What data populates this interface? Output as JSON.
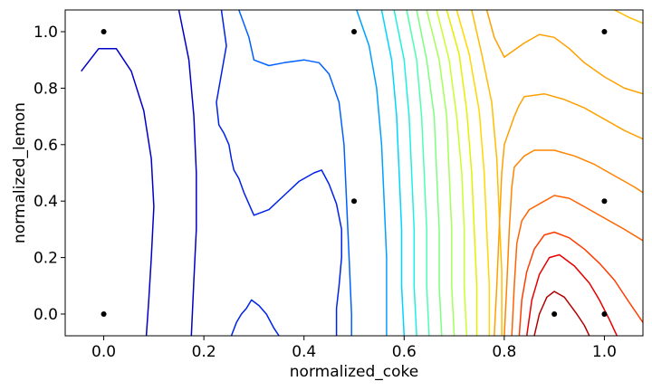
{
  "chart_data": {
    "type": "contour",
    "title": "",
    "xlabel": "normalized_coke",
    "ylabel": "normalized_lemon",
    "xlim": [
      -0.077,
      1.077
    ],
    "ylim": [
      -0.077,
      1.077
    ],
    "grid": false,
    "legend": "none",
    "x_ticks": [
      0.0,
      0.2,
      0.4,
      0.6,
      0.8,
      1.0
    ],
    "x_tick_labels": [
      "0.0",
      "0.2",
      "0.4",
      "0.6",
      "0.8",
      "1.0"
    ],
    "y_ticks": [
      0.0,
      0.2,
      0.4,
      0.6,
      0.8,
      1.0
    ],
    "y_tick_labels": [
      "0.0",
      "0.2",
      "0.4",
      "0.6",
      "0.8",
      "1.0"
    ],
    "colormap": "jet",
    "points": [
      {
        "x": 0.0,
        "y": 1.0
      },
      {
        "x": 0.5,
        "y": 1.0
      },
      {
        "x": 1.0,
        "y": 1.0
      },
      {
        "x": 0.5,
        "y": 0.4
      },
      {
        "x": 1.0,
        "y": 0.4
      },
      {
        "x": 0.0,
        "y": 0.0
      },
      {
        "x": 0.9,
        "y": 0.0
      },
      {
        "x": 1.0,
        "y": 0.0
      }
    ],
    "contours": [
      {
        "level": 0,
        "color": "#0000c8",
        "paths": [
          [
            [
              -0.045,
              0.86
            ],
            [
              -0.01,
              0.94
            ],
            [
              0.025,
              0.94
            ],
            [
              0.055,
              0.86
            ],
            [
              0.08,
              0.72
            ],
            [
              0.095,
              0.55
            ],
            [
              0.1,
              0.38
            ],
            [
              0.095,
              0.2
            ],
            [
              0.09,
              0.05
            ],
            [
              0.085,
              -0.077
            ]
          ],
          [
            [
              0.15,
              1.077
            ],
            [
              0.17,
              0.9
            ],
            [
              0.18,
              0.7
            ],
            [
              0.185,
              0.5
            ],
            [
              0.185,
              0.3
            ],
            [
              0.18,
              0.12
            ],
            [
              0.175,
              -0.077
            ]
          ]
        ]
      },
      {
        "level": 1,
        "color": "#0022e6",
        "paths": [
          [
            [
              0.235,
              1.077
            ],
            [
              0.245,
              0.95
            ],
            [
              0.235,
              0.85
            ],
            [
              0.225,
              0.75
            ],
            [
              0.23,
              0.67
            ],
            [
              0.24,
              0.64
            ],
            [
              0.25,
              0.6
            ],
            [
              0.255,
              0.55
            ],
            [
              0.26,
              0.51
            ],
            [
              0.27,
              0.48
            ],
            [
              0.28,
              0.43
            ],
            [
              0.3,
              0.35
            ],
            [
              0.33,
              0.37
            ],
            [
              0.36,
              0.42
            ],
            [
              0.39,
              0.47
            ],
            [
              0.42,
              0.5
            ],
            [
              0.435,
              0.51
            ],
            [
              0.45,
              0.46
            ],
            [
              0.465,
              0.39
            ],
            [
              0.475,
              0.3
            ],
            [
              0.475,
              0.2
            ],
            [
              0.47,
              0.1
            ],
            [
              0.465,
              0.02
            ],
            [
              0.465,
              -0.077
            ]
          ],
          [
            [
              0.255,
              -0.077
            ],
            [
              0.265,
              -0.03
            ],
            [
              0.275,
              0.0
            ],
            [
              0.285,
              0.02
            ],
            [
              0.295,
              0.05
            ],
            [
              0.31,
              0.03
            ],
            [
              0.325,
              0.0
            ],
            [
              0.34,
              -0.05
            ],
            [
              0.35,
              -0.077
            ]
          ]
        ]
      },
      {
        "level": 2,
        "color": "#0060ff",
        "paths": [
          [
            [
              0.27,
              1.077
            ],
            [
              0.29,
              0.98
            ],
            [
              0.3,
              0.9
            ],
            [
              0.33,
              0.88
            ],
            [
              0.36,
              0.89
            ],
            [
              0.4,
              0.9
            ],
            [
              0.43,
              0.89
            ],
            [
              0.45,
              0.85
            ],
            [
              0.47,
              0.75
            ],
            [
              0.48,
              0.6
            ],
            [
              0.485,
              0.4
            ],
            [
              0.49,
              0.2
            ],
            [
              0.495,
              0.0
            ],
            [
              0.495,
              -0.077
            ]
          ]
        ]
      },
      {
        "level": 3,
        "color": "#00a0ff",
        "paths": [
          [
            [
              0.505,
              1.077
            ],
            [
              0.53,
              0.95
            ],
            [
              0.545,
              0.8
            ],
            [
              0.555,
              0.6
            ],
            [
              0.56,
              0.4
            ],
            [
              0.565,
              0.2
            ],
            [
              0.565,
              -0.077
            ]
          ]
        ]
      },
      {
        "level": 4,
        "color": "#00d4ff",
        "paths": [
          [
            [
              0.555,
              1.077
            ],
            [
              0.575,
              0.9
            ],
            [
              0.585,
              0.7
            ],
            [
              0.59,
              0.5
            ],
            [
              0.595,
              0.3
            ],
            [
              0.595,
              0.1
            ],
            [
              0.6,
              -0.077
            ]
          ]
        ]
      },
      {
        "level": 5,
        "color": "#1ef0e0",
        "paths": [
          [
            [
              0.58,
              1.077
            ],
            [
              0.6,
              0.9
            ],
            [
              0.61,
              0.7
            ],
            [
              0.615,
              0.5
            ],
            [
              0.62,
              0.3
            ],
            [
              0.62,
              0.1
            ],
            [
              0.625,
              -0.077
            ]
          ]
        ]
      },
      {
        "level": 6,
        "color": "#4cffb0",
        "paths": [
          [
            [
              0.605,
              1.077
            ],
            [
              0.625,
              0.9
            ],
            [
              0.635,
              0.7
            ],
            [
              0.64,
              0.5
            ],
            [
              0.645,
              0.3
            ],
            [
              0.645,
              0.1
            ],
            [
              0.65,
              -0.077
            ]
          ]
        ]
      },
      {
        "level": 7,
        "color": "#7cff80",
        "paths": [
          [
            [
              0.625,
              1.077
            ],
            [
              0.645,
              0.9
            ],
            [
              0.66,
              0.7
            ],
            [
              0.665,
              0.5
            ],
            [
              0.67,
              0.3
            ],
            [
              0.67,
              0.1
            ],
            [
              0.675,
              -0.077
            ]
          ]
        ]
      },
      {
        "level": 8,
        "color": "#a4ff58",
        "paths": [
          [
            [
              0.645,
              1.077
            ],
            [
              0.67,
              0.9
            ],
            [
              0.685,
              0.7
            ],
            [
              0.69,
              0.5
            ],
            [
              0.695,
              0.3
            ],
            [
              0.695,
              0.1
            ],
            [
              0.7,
              -0.077
            ]
          ]
        ]
      },
      {
        "level": 9,
        "color": "#c8ff2e",
        "paths": [
          [
            [
              0.665,
              1.077
            ],
            [
              0.69,
              0.9
            ],
            [
              0.705,
              0.7
            ],
            [
              0.715,
              0.5
            ],
            [
              0.72,
              0.3
            ],
            [
              0.72,
              0.1
            ],
            [
              0.725,
              -0.077
            ]
          ]
        ]
      },
      {
        "level": 10,
        "color": "#e4f000",
        "paths": [
          [
            [
              0.685,
              1.077
            ],
            [
              0.71,
              0.92
            ],
            [
              0.725,
              0.72
            ],
            [
              0.735,
              0.5
            ],
            [
              0.74,
              0.3
            ],
            [
              0.745,
              0.1
            ],
            [
              0.745,
              -0.077
            ]
          ]
        ]
      },
      {
        "level": 11,
        "color": "#ffd800",
        "paths": [
          [
            [
              0.705,
              1.077
            ],
            [
              0.73,
              0.92
            ],
            [
              0.75,
              0.72
            ],
            [
              0.76,
              0.5
            ],
            [
              0.765,
              0.3
            ],
            [
              0.77,
              0.1
            ],
            [
              0.77,
              -0.077
            ]
          ]
        ]
      },
      {
        "level": 12,
        "color": "#ffbd00",
        "paths": [
          [
            [
              0.735,
              1.077
            ],
            [
              0.755,
              0.92
            ],
            [
              0.775,
              0.75
            ],
            [
              0.785,
              0.55
            ],
            [
              0.79,
              0.35
            ],
            [
              0.795,
              0.15
            ],
            [
              0.795,
              -0.077
            ]
          ],
          [
            [
              1.077,
              1.03
            ],
            [
              1.05,
              1.05
            ],
            [
              1.02,
              1.077
            ]
          ]
        ]
      },
      {
        "level": 13,
        "color": "#ffa000",
        "paths": [
          [
            [
              0.765,
              1.077
            ],
            [
              0.78,
              0.98
            ],
            [
              0.8,
              0.91
            ],
            [
              0.84,
              0.96
            ],
            [
              0.87,
              0.99
            ],
            [
              0.9,
              0.98
            ],
            [
              0.93,
              0.94
            ],
            [
              0.96,
              0.89
            ],
            [
              1.0,
              0.84
            ],
            [
              1.04,
              0.8
            ],
            [
              1.077,
              0.78
            ]
          ],
          [
            [
              0.78,
              -0.077
            ],
            [
              0.785,
              0.1
            ],
            [
              0.79,
              0.3
            ],
            [
              0.795,
              0.5
            ],
            [
              0.8,
              0.6
            ],
            [
              0.81,
              0.65
            ],
            [
              0.82,
              0.7
            ],
            [
              0.83,
              0.74
            ],
            [
              0.84,
              0.77
            ],
            [
              0.88,
              0.78
            ],
            [
              0.92,
              0.76
            ],
            [
              0.96,
              0.73
            ],
            [
              1.0,
              0.69
            ],
            [
              1.04,
              0.65
            ],
            [
              1.077,
              0.62
            ]
          ]
        ]
      },
      {
        "level": 14,
        "color": "#ff8400",
        "paths": [
          [
            [
              0.8,
              -0.077
            ],
            [
              0.805,
              0.1
            ],
            [
              0.81,
              0.3
            ],
            [
              0.815,
              0.45
            ],
            [
              0.82,
              0.52
            ],
            [
              0.84,
              0.56
            ],
            [
              0.86,
              0.58
            ],
            [
              0.9,
              0.58
            ],
            [
              0.94,
              0.56
            ],
            [
              0.98,
              0.53
            ],
            [
              1.02,
              0.49
            ],
            [
              1.06,
              0.45
            ],
            [
              1.077,
              0.43
            ]
          ]
        ]
      },
      {
        "level": 15,
        "color": "#ff6200",
        "paths": [
          [
            [
              0.815,
              -0.077
            ],
            [
              0.82,
              0.1
            ],
            [
              0.825,
              0.25
            ],
            [
              0.835,
              0.33
            ],
            [
              0.85,
              0.37
            ],
            [
              0.87,
              0.39
            ],
            [
              0.9,
              0.42
            ],
            [
              0.93,
              0.41
            ],
            [
              0.96,
              0.38
            ],
            [
              1.0,
              0.34
            ],
            [
              1.04,
              0.3
            ],
            [
              1.077,
              0.26
            ]
          ]
        ]
      },
      {
        "level": 16,
        "color": "#ff3c00",
        "paths": [
          [
            [
              0.83,
              -0.077
            ],
            [
              0.835,
              0.05
            ],
            [
              0.845,
              0.15
            ],
            [
              0.86,
              0.23
            ],
            [
              0.88,
              0.28
            ],
            [
              0.9,
              0.29
            ],
            [
              0.93,
              0.27
            ],
            [
              0.96,
              0.23
            ],
            [
              0.99,
              0.18
            ],
            [
              1.02,
              0.12
            ],
            [
              1.05,
              0.04
            ],
            [
              1.077,
              -0.03
            ]
          ]
        ]
      },
      {
        "level": 17,
        "color": "#e80000",
        "paths": [
          [
            [
              0.845,
              -0.077
            ],
            [
              0.855,
              0.05
            ],
            [
              0.87,
              0.14
            ],
            [
              0.89,
              0.2
            ],
            [
              0.91,
              0.21
            ],
            [
              0.94,
              0.17
            ],
            [
              0.97,
              0.11
            ],
            [
              0.99,
              0.05
            ],
            [
              1.01,
              -0.02
            ],
            [
              1.025,
              -0.077
            ]
          ]
        ]
      },
      {
        "level": 18,
        "color": "#b00000",
        "paths": [
          [
            [
              0.86,
              -0.077
            ],
            [
              0.87,
              0.0
            ],
            [
              0.885,
              0.06
            ],
            [
              0.9,
              0.08
            ],
            [
              0.92,
              0.06
            ],
            [
              0.945,
              0.0
            ],
            [
              0.96,
              -0.04
            ],
            [
              0.97,
              -0.077
            ]
          ]
        ]
      }
    ]
  }
}
